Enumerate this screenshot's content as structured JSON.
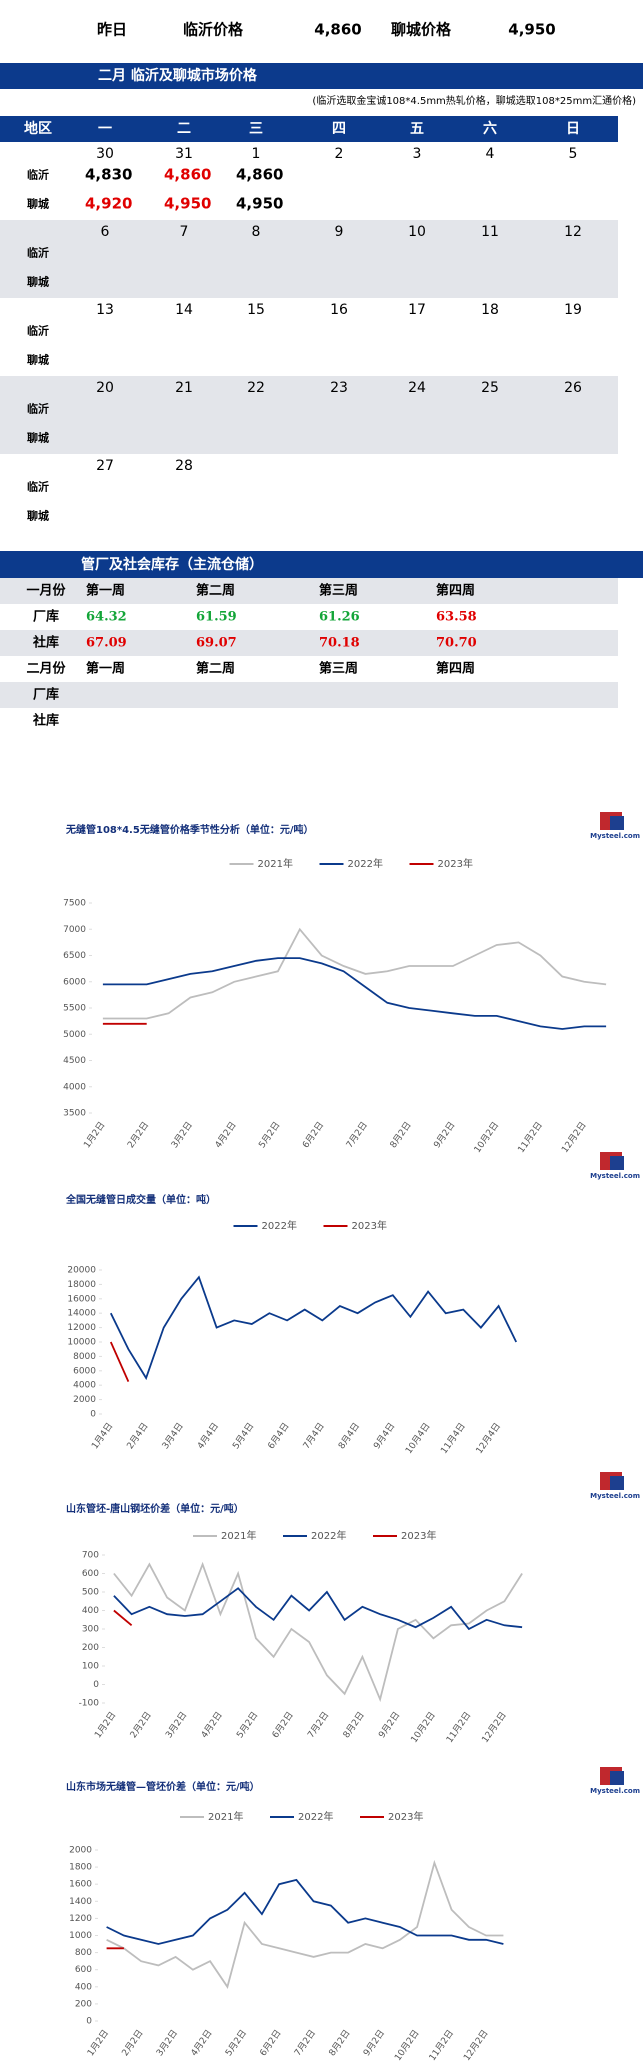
{
  "header": {
    "items": [
      "昨日",
      "临沂价格",
      "4,860",
      "聊城价格",
      "4,950"
    ]
  },
  "calendar": {
    "title": "二月  临沂及聊城市场价格",
    "note": "(临沂选取金宝诚108*4.5mm热轧价格，聊城选取108*25mm汇通价格)",
    "columns": [
      "地区",
      "一",
      "二",
      "三",
      "四",
      "五",
      "六",
      "日"
    ],
    "regions": [
      "临沂",
      "聊城"
    ],
    "weeks": [
      {
        "days": [
          "30",
          "31",
          "1",
          "2",
          "3",
          "4",
          "5"
        ],
        "prices": [
          [
            "4,830",
            "4,860",
            "4,860"
          ],
          [
            "4,920",
            "4,950",
            "4,950"
          ]
        ],
        "price_colors": [
          [
            "#000000",
            "#e00000",
            "#000000"
          ],
          [
            "#e00000",
            "#e00000",
            "#000000"
          ]
        ]
      },
      {
        "days": [
          "6",
          "7",
          "8",
          "9",
          "10",
          "11",
          "12"
        ]
      },
      {
        "days": [
          "13",
          "14",
          "15",
          "16",
          "17",
          "18",
          "19"
        ]
      },
      {
        "days": [
          "20",
          "21",
          "22",
          "23",
          "24",
          "25",
          "26"
        ]
      },
      {
        "days": [
          "27",
          "28"
        ]
      }
    ]
  },
  "inventory": {
    "title": "管厂及社会库存（主流仓储）",
    "rows": [
      {
        "cells": [
          "一月份",
          "第一周",
          "第二周",
          "第三周",
          "第四周"
        ]
      },
      {
        "cells": [
          "厂库",
          "64.32",
          "61.59",
          "61.26",
          "63.58"
        ],
        "colors": [
          "#000000",
          "#13a538",
          "#13a538",
          "#13a538",
          "#e00000"
        ]
      },
      {
        "cells": [
          "社库",
          "67.09",
          "69.07",
          "70.18",
          "70.70"
        ],
        "colors": [
          "#000000",
          "#e00000",
          "#e00000",
          "#e00000",
          "#e00000"
        ]
      },
      {
        "cells": [
          "二月份",
          "第一周",
          "第二周",
          "第三周",
          "第四周"
        ]
      },
      {
        "cells": [
          "厂库"
        ]
      },
      {
        "cells": [
          "社库"
        ]
      }
    ]
  },
  "logo": "Mysteel.com",
  "chart_data": [
    {
      "type": "line",
      "title": "无缝管108*4.5无缝管价格季节性分析（单位：元/吨）",
      "categories": [
        "1月2日",
        null,
        "2月2日",
        null,
        "3月2日",
        null,
        "4月2日",
        null,
        "5月2日",
        null,
        "6月2日",
        null,
        "7月2日",
        null,
        "8月2日",
        null,
        "9月2日",
        null,
        "10月2日",
        null,
        "11月2日",
        null,
        "12月2日",
        null
      ],
      "ylim": [
        3500,
        7500
      ],
      "yticks": [
        3500,
        4000,
        4500,
        5000,
        5500,
        6000,
        6500,
        7000,
        7500
      ],
      "series": [
        {
          "name": "2021年",
          "color": "#bdbdbd",
          "values": [
            5300,
            5300,
            5300,
            5400,
            5700,
            5800,
            6000,
            6100,
            6200,
            7000,
            6500,
            6300,
            6150,
            6200,
            6300,
            6300,
            6300,
            6500,
            6700,
            6750,
            6500,
            6100,
            6000,
            5950
          ]
        },
        {
          "name": "2022年",
          "color": "#0b3a8c",
          "values": [
            5950,
            5950,
            5950,
            6050,
            6150,
            6200,
            6300,
            6400,
            6450,
            6450,
            6350,
            6200,
            5900,
            5600,
            5500,
            5450,
            5400,
            5350,
            5350,
            5250,
            5150,
            5100,
            5150,
            5150
          ]
        },
        {
          "name": "2023年",
          "color": "#c00000",
          "values": [
            5200,
            5200,
            5200,
            null,
            null,
            null,
            null,
            null,
            null,
            null,
            null,
            null,
            null,
            null,
            null,
            null,
            null,
            null,
            null,
            null,
            null,
            null,
            null,
            null
          ]
        }
      ]
    },
    {
      "type": "line",
      "title": "全国无缝管日成交量（单位：吨）",
      "categories": [
        "1月4日",
        null,
        "2月4日",
        null,
        "3月4日",
        null,
        "4月4日",
        null,
        "5月4日",
        null,
        "6月4日",
        null,
        "7月4日",
        null,
        "8月4日",
        null,
        "9月4日",
        null,
        "10月4日",
        null,
        "11月4日",
        null,
        "12月4日",
        null
      ],
      "ylim": [
        0,
        20000
      ],
      "yticks": [
        0,
        2000,
        4000,
        6000,
        8000,
        10000,
        12000,
        14000,
        16000,
        18000,
        20000
      ],
      "series": [
        {
          "name": "2022年",
          "color": "#0b3a8c",
          "values": [
            14000,
            9000,
            5000,
            12000,
            16000,
            19000,
            12000,
            13000,
            12500,
            14000,
            13000,
            14500,
            13000,
            15000,
            14000,
            15500,
            16500,
            13500,
            17000,
            14000,
            14500,
            12000,
            15000,
            10000
          ]
        },
        {
          "name": "2023年",
          "color": "#c00000",
          "values": [
            10000,
            4500,
            null,
            null,
            null,
            null,
            null,
            null,
            null,
            null,
            null,
            null,
            null,
            null,
            null,
            null,
            null,
            null,
            null,
            null,
            null,
            null,
            null,
            null
          ]
        }
      ]
    },
    {
      "type": "line",
      "title": "山东管坯-唐山钢坯价差（单位：元/吨）",
      "categories": [
        "1月2日",
        null,
        "2月2日",
        null,
        "3月2日",
        null,
        "4月2日",
        null,
        "5月2日",
        null,
        "6月2日",
        null,
        "7月2日",
        null,
        "8月2日",
        null,
        "9月2日",
        null,
        "10月2日",
        null,
        "11月2日",
        null,
        "12月2日",
        null
      ],
      "ylim": [
        -100,
        700
      ],
      "yticks": [
        -100,
        0,
        100,
        200,
        300,
        400,
        500,
        600,
        700
      ],
      "series": [
        {
          "name": "2021年",
          "color": "#bdbdbd",
          "values": [
            600,
            480,
            650,
            470,
            400,
            650,
            380,
            600,
            250,
            150,
            300,
            230,
            50,
            -50,
            150,
            -80,
            300,
            350,
            250,
            320,
            330,
            400,
            450,
            600
          ]
        },
        {
          "name": "2022年",
          "color": "#0b3a8c",
          "values": [
            480,
            380,
            420,
            380,
            370,
            380,
            450,
            520,
            420,
            350,
            480,
            400,
            500,
            350,
            420,
            380,
            350,
            310,
            360,
            420,
            300,
            350,
            320,
            310
          ]
        },
        {
          "name": "2023年",
          "color": "#c00000",
          "values": [
            400,
            320,
            null,
            null,
            null,
            null,
            null,
            null,
            null,
            null,
            null,
            null,
            null,
            null,
            null,
            null,
            null,
            null,
            null,
            null,
            null,
            null,
            null,
            null
          ]
        }
      ]
    },
    {
      "type": "line",
      "title": "山东市场无缝管—管坯价差（单位：元/吨）",
      "categories": [
        "1月2日",
        null,
        "2月2日",
        null,
        "3月2日",
        null,
        "4月2日",
        null,
        "5月2日",
        null,
        "6月2日",
        null,
        "7月2日",
        null,
        "8月2日",
        null,
        "9月2日",
        null,
        "10月2日",
        null,
        "11月2日",
        null,
        "12月2日",
        null
      ],
      "ylim": [
        0,
        2000
      ],
      "yticks": [
        0,
        200,
        400,
        600,
        800,
        1000,
        1200,
        1400,
        1600,
        1800,
        2000
      ],
      "series": [
        {
          "name": "2021年",
          "color": "#bdbdbd",
          "values": [
            950,
            850,
            700,
            650,
            750,
            600,
            700,
            400,
            1150,
            900,
            850,
            800,
            750,
            800,
            800,
            900,
            850,
            950,
            1100,
            1850,
            1300,
            1100,
            1000,
            1000
          ]
        },
        {
          "name": "2022年",
          "color": "#0b3a8c",
          "values": [
            1100,
            1000,
            950,
            900,
            950,
            1000,
            1200,
            1300,
            1500,
            1250,
            1600,
            1650,
            1400,
            1350,
            1150,
            1200,
            1150,
            1100,
            1000,
            1000,
            1000,
            950,
            950,
            900
          ]
        },
        {
          "name": "2023年",
          "color": "#c00000",
          "values": [
            850,
            850,
            null,
            null,
            null,
            null,
            null,
            null,
            null,
            null,
            null,
            null,
            null,
            null,
            null,
            null,
            null,
            null,
            null,
            null,
            null,
            null,
            null,
            null
          ]
        }
      ]
    }
  ]
}
